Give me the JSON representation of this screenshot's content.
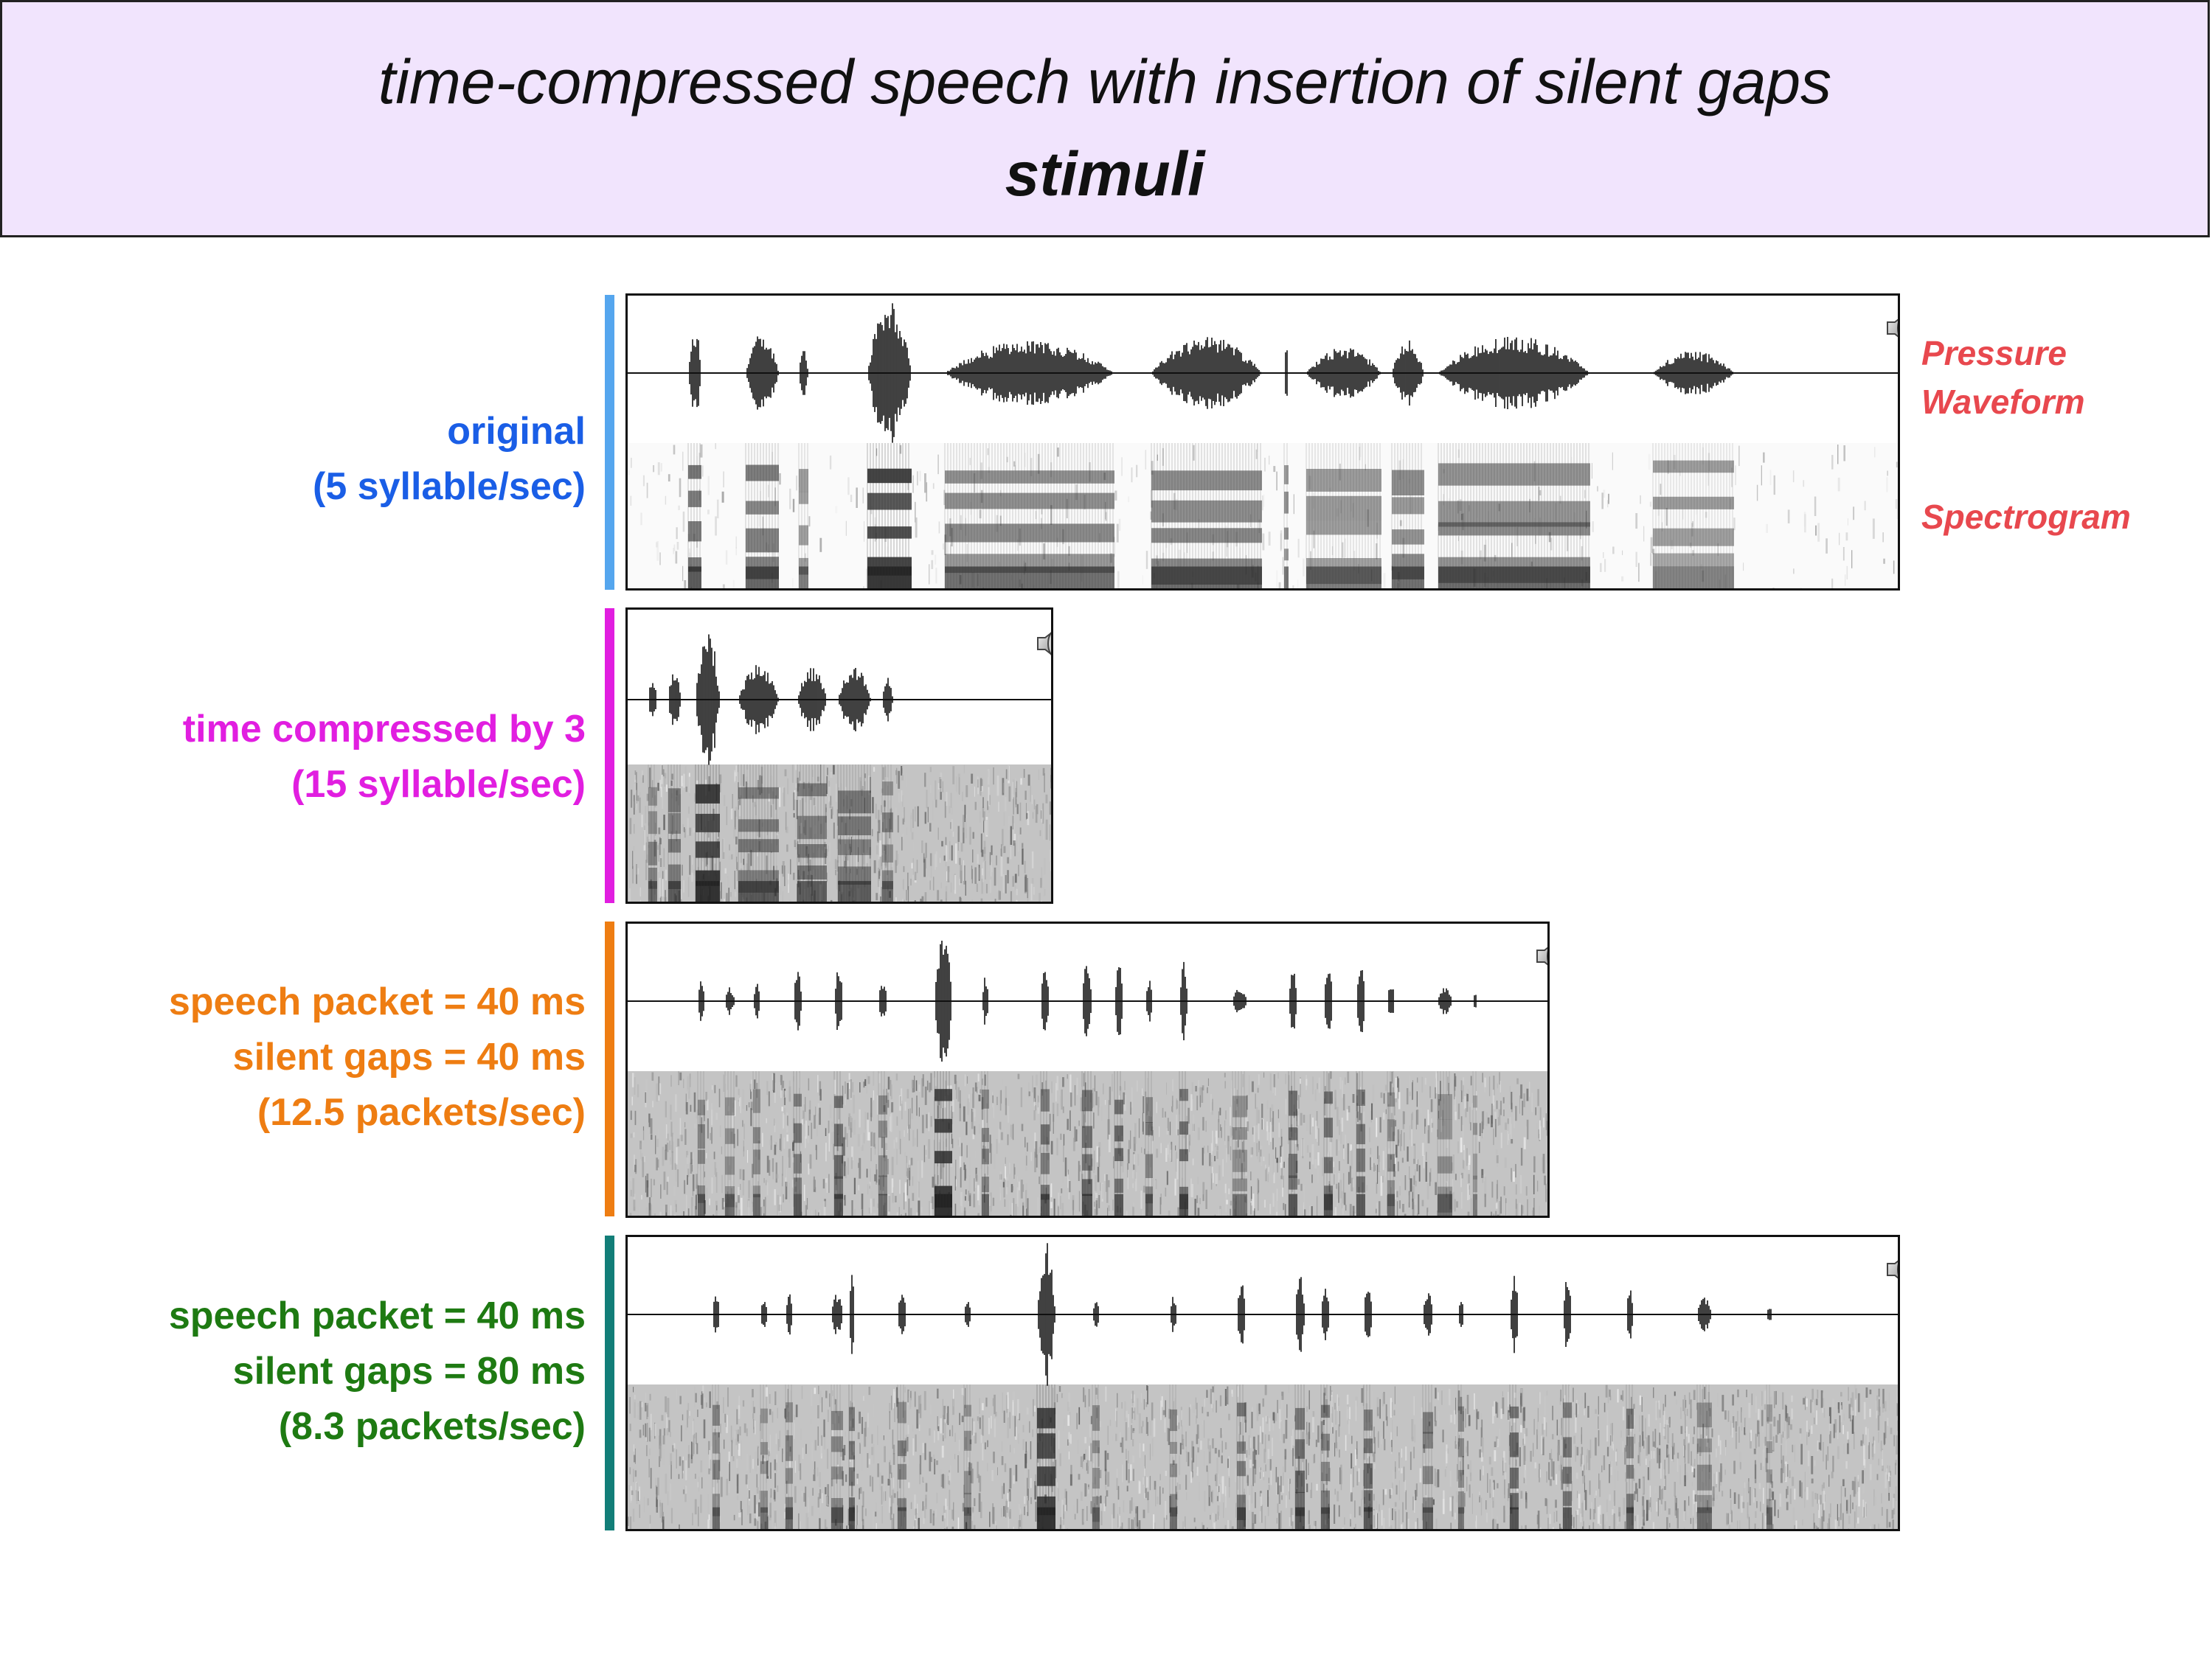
{
  "title": {
    "line1": "time-compressed speech with insertion of silent gaps",
    "line2": "stimuli"
  },
  "side_labels": {
    "waveform_line1": "Pressure",
    "waveform_line2": "Waveform",
    "spectrogram": "Spectrogram",
    "color": "#e8484e"
  },
  "rows": [
    {
      "id": "original",
      "color": "#1a5ee6",
      "bar_color": "#55a6ee",
      "lines": [
        "original",
        "(5 syllable/sec)"
      ],
      "icon": "speaker-icon"
    },
    {
      "id": "compressed",
      "color": "#e11ee0",
      "bar_color": "#e11ee0",
      "lines": [
        "time compressed by 3",
        "(15 syllable/sec)"
      ],
      "icon": "speaker-icon"
    },
    {
      "id": "gap40",
      "color": "#ee7d12",
      "bar_color": "#ee7d12",
      "lines": [
        "speech packet = 40 ms",
        "silent gaps = 40 ms",
        "(12.5 packets/sec)"
      ],
      "icon": "speaker-icon"
    },
    {
      "id": "gap80",
      "color": "#1e7a12",
      "bar_color": "#127e78",
      "lines": [
        "speech packet = 40 ms",
        "silent gaps = 80 ms",
        "(8.3 packets/sec)"
      ],
      "icon": "speaker-icon"
    }
  ]
}
